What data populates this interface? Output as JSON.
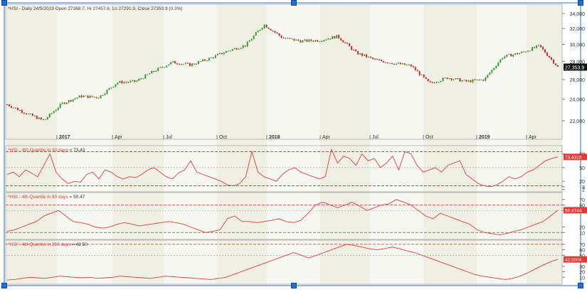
{
  "colors": {
    "up": "#2e9e2e",
    "down": "#c62828",
    "indicator": "#e53935",
    "band_a": "#f0efe4",
    "band_b": "#f8f8f2",
    "ref_red": "#d32f2f",
    "ref_green": "#2e7d32",
    "selection": "#1f6fd6",
    "price_tag": "#111111"
  },
  "main_panel": {
    "header": "^HSI - Daily 24/5/2019 Open 27368.7, Hi 27457.6, Lo 27291.9, Close 27353.9 (0.3%)",
    "last_price_label": "27,353.9",
    "y_ticks": [
      "34,000",
      "32,000",
      "30,000",
      "28,000",
      "26,000",
      "24,000",
      "22,000"
    ],
    "x_labels": [
      "2017",
      "Apr",
      "Jul",
      "Oct",
      "2018",
      "Apr",
      "Jul",
      "Oct",
      "2019",
      "Apr"
    ]
  },
  "indicator_panels": [
    {
      "title": "^HSI - 4th Quartile in 30 days",
      "value_text": "= 73.43",
      "last_value_label": "73.4315",
      "y_ticks": [
        "80",
        "50",
        "20",
        "8",
        "2"
      ]
    },
    {
      "title": "^HSI - 4th Quartile in 90 days",
      "value_text": "= 50.47",
      "last_value_label": "50.4744",
      "y_ticks": [
        "70",
        "60",
        "50",
        "20",
        "10"
      ]
    },
    {
      "title": "^HSI - 4th Quartile in 250 days",
      "value_text": "= 42.50",
      "last_value_label": "42.5004",
      "y_ticks": [
        "70",
        "60",
        "50",
        "30",
        "20",
        "10"
      ]
    }
  ],
  "chart_data": [
    {
      "type": "line",
      "subtype": "candlestick",
      "title": "^HSI - Daily 24/5/2019 Open 27368.7, Hi 27457.6, Lo 27291.9, Close 27353.9 (0.3%)",
      "x_labels": [
        "2017",
        "Apr",
        "Jul",
        "Oct",
        "2018",
        "Apr",
        "Jul",
        "Oct",
        "2019",
        "Apr"
      ],
      "ylim": [
        21000,
        34500
      ],
      "log_scale": true,
      "grid": false,
      "x": [
        "2016-11",
        "2016-12",
        "2017-01",
        "2017-02",
        "2017-03",
        "2017-04",
        "2017-05",
        "2017-06",
        "2017-07",
        "2017-08",
        "2017-09",
        "2017-10",
        "2017-11",
        "2017-12",
        "2018-01",
        "2018-02",
        "2018-03",
        "2018-04",
        "2018-05",
        "2018-06",
        "2018-07",
        "2018-08",
        "2018-09",
        "2018-10",
        "2018-11",
        "2018-12",
        "2019-01",
        "2019-02",
        "2019-03",
        "2019-04",
        "2019-05"
      ],
      "values": [
        23500,
        22700,
        22000,
        23600,
        24300,
        24200,
        25700,
        25800,
        26900,
        27900,
        27600,
        28300,
        29200,
        29900,
        32500,
        30800,
        30400,
        30500,
        31000,
        29000,
        28200,
        27800,
        27500,
        25600,
        26200,
        25800,
        26000,
        28500,
        29000,
        29800,
        27350
      ]
    },
    {
      "type": "line",
      "title": "^HSI - 4th Quartile in 30 days = 73.43",
      "ylim": [
        0,
        95
      ],
      "series": [
        {
          "name": "^HSI - 4th Quartile in 30 days",
          "values": [
            35,
            40,
            30,
            45,
            38,
            30,
            55,
            80,
            40,
            25,
            15,
            20,
            18,
            35,
            40,
            25,
            45,
            40,
            30,
            25,
            30,
            28,
            35,
            45,
            50,
            40,
            30,
            25,
            38,
            45,
            65,
            40,
            35,
            30,
            25,
            20,
            12,
            10,
            15,
            30,
            85,
            40,
            30,
            25,
            20,
            35,
            45,
            50,
            40,
            35,
            30,
            25,
            30,
            90,
            60,
            75,
            70,
            55,
            80,
            65,
            70,
            50,
            60,
            75,
            45,
            85,
            80,
            55,
            40,
            45,
            50,
            40,
            55,
            60,
            65,
            35,
            25,
            15,
            10,
            8,
            12,
            20,
            30,
            25,
            30,
            40,
            45,
            55,
            65,
            70,
            73.43
          ]
        }
      ]
    },
    {
      "type": "line",
      "title": "^HSI - 4th Quartile in 90 days = 50.47",
      "ylim": [
        0,
        80
      ],
      "series": [
        {
          "name": "^HSI - 4th Quartile in 90 days",
          "values": [
            12,
            15,
            20,
            25,
            30,
            40,
            45,
            50,
            40,
            30,
            28,
            25,
            20,
            18,
            20,
            25,
            28,
            25,
            22,
            24,
            26,
            28,
            30,
            28,
            25,
            20,
            15,
            10,
            12,
            15,
            35,
            40,
            30,
            30,
            28,
            30,
            32,
            35,
            30,
            28,
            32,
            45,
            60,
            65,
            60,
            55,
            60,
            65,
            58,
            50,
            55,
            60,
            62,
            70,
            65,
            60,
            50,
            40,
            35,
            45,
            40,
            35,
            30,
            25,
            15,
            10,
            8,
            6,
            8,
            12,
            15,
            20,
            25,
            30,
            40,
            50.47
          ]
        }
      ]
    },
    {
      "type": "line",
      "title": "^HSI - 4th Quartile in 250 days = 42.50",
      "ylim": [
        0,
        75
      ],
      "series": [
        {
          "name": "^HSI - 4th Quartile in 250 days",
          "values": [
            5,
            6,
            8,
            10,
            9,
            8,
            10,
            12,
            11,
            10,
            9,
            10,
            8,
            9,
            10,
            12,
            11,
            10,
            9,
            8,
            10,
            12,
            11,
            10,
            9,
            8,
            7,
            6,
            8,
            10,
            15,
            20,
            25,
            30,
            35,
            40,
            45,
            50,
            55,
            50,
            45,
            50,
            55,
            60,
            65,
            70,
            68,
            65,
            62,
            60,
            62,
            65,
            62,
            58,
            55,
            50,
            45,
            40,
            35,
            30,
            25,
            20,
            15,
            12,
            10,
            8,
            6,
            8,
            12,
            18,
            25,
            32,
            38,
            42.5
          ]
        }
      ]
    }
  ]
}
